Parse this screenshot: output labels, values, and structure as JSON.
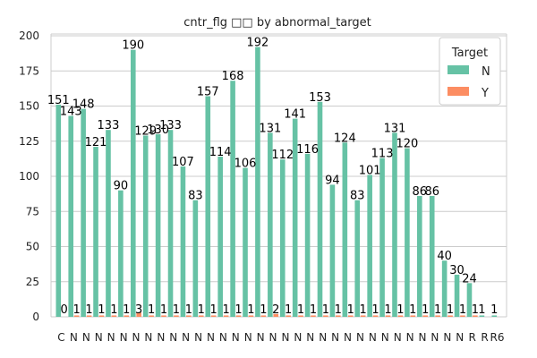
{
  "chart_data": {
    "type": "bar",
    "title": "cntr_flg □□ by abnormal_target",
    "xlabel": "",
    "ylabel": "",
    "ylim": [
      0,
      200
    ],
    "yticks": [
      0,
      25,
      50,
      75,
      100,
      125,
      150,
      175,
      200
    ],
    "grid": true,
    "legend": {
      "title": "Target",
      "position": "top-right"
    },
    "categories": [
      "C",
      "N",
      "N",
      "N",
      "N",
      "N",
      "N",
      "N",
      "N",
      "N",
      "N",
      "N",
      "N",
      "N",
      "N",
      "N",
      "N",
      "N",
      "N",
      "N",
      "N",
      "N",
      "N",
      "N",
      "N",
      "N",
      "N",
      "N",
      "N",
      "N",
      "N",
      "N",
      "N",
      "R",
      "R",
      "R6"
    ],
    "series": [
      {
        "name": "N",
        "color": "#66c2a5",
        "values": [
          151,
          143,
          148,
          121,
          133,
          90,
          190,
          129,
          130,
          133,
          107,
          83,
          157,
          114,
          168,
          106,
          192,
          131,
          112,
          141,
          116,
          153,
          94,
          124,
          83,
          101,
          113,
          131,
          120,
          86,
          86,
          40,
          30,
          24,
          1,
          1
        ],
        "labels": [
          "151",
          "143",
          "148",
          "121",
          "133",
          "90",
          "190",
          "129",
          "130",
          "133",
          "107",
          "83",
          "157",
          "114",
          "168",
          "106",
          "192",
          "131",
          "112",
          "141",
          "116",
          "153",
          "94",
          "124",
          "83",
          "101",
          "113",
          "131",
          "120",
          "86",
          "86",
          "40",
          "30",
          "24",
          "1",
          "1"
        ]
      },
      {
        "name": "Y",
        "color": "#fc8d62",
        "values": [
          0,
          1,
          1,
          1,
          1,
          1,
          3,
          1,
          1,
          1,
          1,
          1,
          1,
          1,
          1,
          1,
          1,
          2,
          1,
          1,
          1,
          1,
          1,
          1,
          1,
          1,
          1,
          1,
          1,
          1,
          1,
          1,
          1,
          1,
          0,
          0
        ],
        "labels": [
          "0",
          "1",
          "1",
          "1",
          "1",
          "1",
          "3",
          "1",
          "1",
          "1",
          "1",
          "1",
          "1",
          "1",
          "1",
          "1",
          "1",
          "2",
          "1",
          "1",
          "1",
          "1",
          "1",
          "1",
          "1",
          "1",
          "1",
          "1",
          "1",
          "1",
          "1",
          "1",
          "1",
          "1",
          "",
          ""
        ]
      }
    ]
  }
}
